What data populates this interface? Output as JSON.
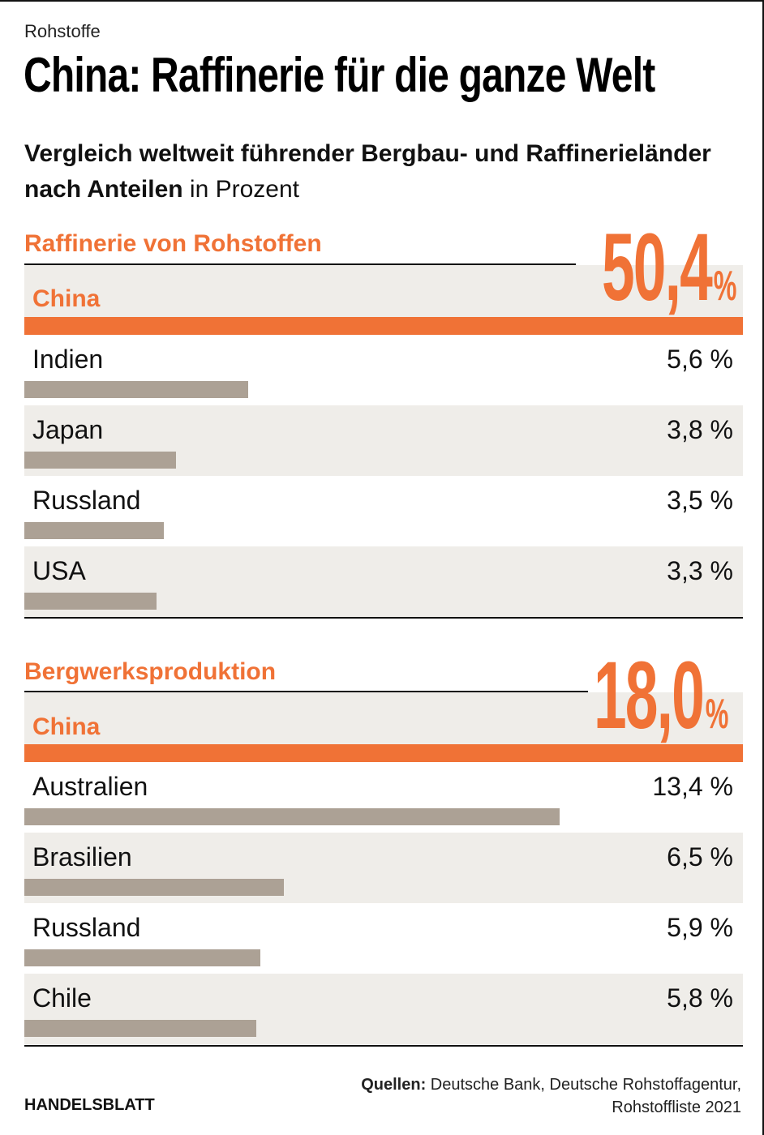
{
  "kicker": "Rohstoffe",
  "title": "China: Raffinerie für die ganze Welt",
  "subtitle": {
    "bold": "Vergleich weltweit führender Bergbau- und Raffinerieländer nach Anteilen",
    "normal": " in Prozent"
  },
  "chart_data": [
    {
      "type": "bar",
      "title": "Raffinerie von Rohstoffen",
      "highlight": {
        "category": "China",
        "value": 50.4,
        "number_label": "50,4",
        "unit": "%"
      },
      "categories": [
        "Indien",
        "Japan",
        "Russland",
        "USA"
      ],
      "values": [
        5.6,
        3.8,
        3.5,
        3.3
      ],
      "value_labels": [
        "5,6 %",
        "3,8 %",
        "3,5 %",
        "3,3 %"
      ],
      "colors": {
        "highlight": "#f07236",
        "bars": "#aca195",
        "row_shade": "#efede9"
      }
    },
    {
      "type": "bar",
      "title": "Bergwerksproduktion",
      "highlight": {
        "category": "China",
        "value": 18.0,
        "number_label": "18,0",
        "unit": "%"
      },
      "categories": [
        "Australien",
        "Brasilien",
        "Russland",
        "Chile"
      ],
      "values": [
        13.4,
        6.5,
        5.9,
        5.8
      ],
      "value_labels": [
        "13,4 %",
        "6,5 %",
        "5,9 %",
        "5,8 %"
      ],
      "colors": {
        "highlight": "#f07236",
        "bars": "#aca195",
        "row_shade": "#efede9"
      }
    }
  ],
  "footer": {
    "brand": "HANDELSBLATT",
    "source_label": "Quellen:",
    "source_text": " Deutsche Bank, Deutsche Rohstoffagentur, Rohstoffliste 2021"
  }
}
